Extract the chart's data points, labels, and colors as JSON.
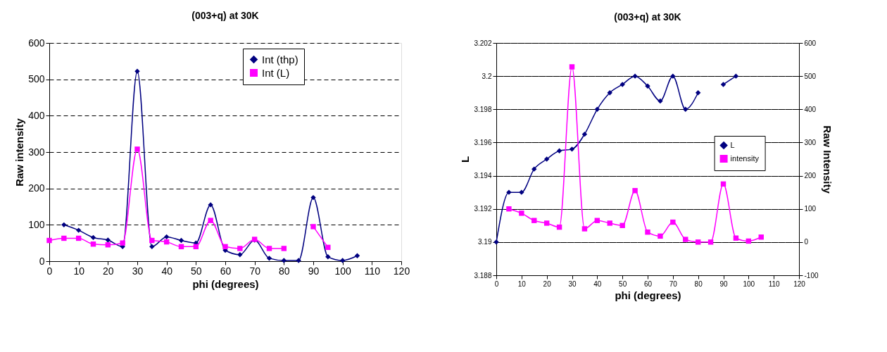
{
  "chart_data": [
    {
      "type": "line",
      "title": "(003+q) at 30K",
      "xlabel": "phi (degrees)",
      "ylabel": "Raw intensity",
      "x": [
        0,
        5,
        10,
        15,
        20,
        25,
        30,
        35,
        40,
        45,
        50,
        55,
        60,
        65,
        70,
        75,
        80,
        85,
        90,
        95,
        100,
        105
      ],
      "xlim": [
        0,
        120
      ],
      "xticks": [
        0,
        10,
        20,
        30,
        40,
        50,
        60,
        70,
        80,
        90,
        100,
        110,
        120
      ],
      "ylim": [
        0,
        600
      ],
      "yticks": [
        0,
        100,
        200,
        300,
        400,
        500,
        600
      ],
      "grid": "y",
      "legend": "top right",
      "line_style": "solid",
      "series": [
        {
          "name": "Int (thp)",
          "color": "#000080",
          "marker": "diamond",
          "values": [
            null,
            100,
            85,
            65,
            58,
            40,
            522,
            40,
            67,
            57,
            50,
            155,
            30,
            18,
            58,
            8,
            2,
            2,
            175,
            12,
            2,
            15
          ]
        },
        {
          "name": "Int (L)",
          "color": "#ff00ff",
          "marker": "square",
          "values": [
            57,
            63,
            63,
            47,
            45,
            50,
            308,
            57,
            53,
            40,
            40,
            112,
            40,
            35,
            60,
            35,
            35,
            null,
            95,
            38,
            null,
            null
          ]
        }
      ]
    },
    {
      "type": "line",
      "title": "(003+q) at 30K",
      "xlabel": "phi (degrees)",
      "ylabel": "L",
      "y2label": "Raw Intensity",
      "x": [
        0,
        5,
        10,
        15,
        20,
        25,
        30,
        35,
        40,
        45,
        50,
        55,
        60,
        65,
        70,
        75,
        80,
        85,
        90,
        95,
        100,
        105
      ],
      "xlim": [
        0,
        120
      ],
      "xticks": [
        0,
        10,
        20,
        30,
        40,
        50,
        60,
        70,
        80,
        90,
        100,
        110,
        120
      ],
      "ylim": [
        3.188,
        3.202
      ],
      "yticks": [
        3.188,
        3.19,
        3.192,
        3.194,
        3.196,
        3.198,
        3.2,
        3.202
      ],
      "y2lim": [
        -100,
        600
      ],
      "y2ticks": [
        -100,
        0,
        100,
        200,
        300,
        400,
        500,
        600
      ],
      "grid": "y",
      "legend": "right",
      "line_style": "solid",
      "series": [
        {
          "name": "L",
          "color": "#000080",
          "marker": "diamond",
          "values": [
            3.19,
            3.193,
            3.193,
            3.1944,
            3.195,
            3.1955,
            3.1956,
            3.1965,
            3.198,
            3.199,
            3.1995,
            3.2,
            3.1994,
            3.1985,
            3.2,
            3.198,
            3.199,
            null,
            3.1995,
            3.2,
            null,
            null
          ]
        },
        {
          "name": "intensity",
          "color": "#ff00ff",
          "marker": "square",
          "axis": "y2",
          "values": [
            null,
            100,
            87,
            65,
            57,
            45,
            528,
            40,
            65,
            57,
            50,
            155,
            30,
            18,
            60,
            8,
            0,
            0,
            175,
            12,
            3,
            15
          ]
        }
      ]
    }
  ]
}
